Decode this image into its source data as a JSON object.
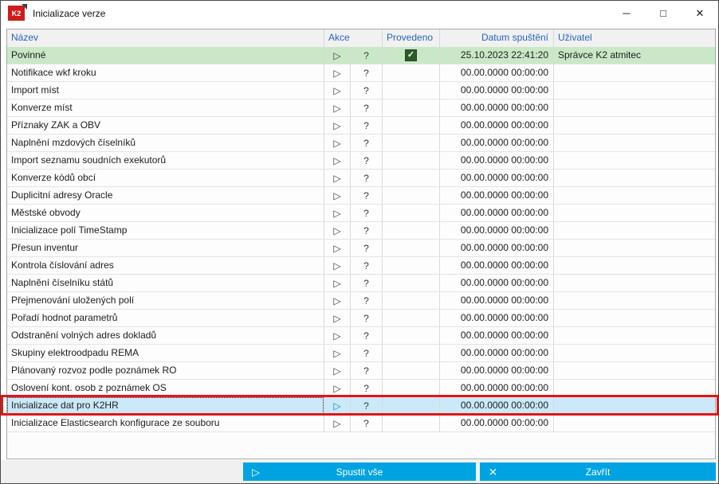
{
  "window": {
    "title": "Inicializace verze"
  },
  "icons": {
    "k2_logo": "K2",
    "minimize": "─",
    "maximize": "□",
    "close": "✕",
    "play": "▷",
    "question": "?",
    "check": "✓",
    "run_all": "▷",
    "close_btn": "✕"
  },
  "table": {
    "headers": {
      "nazev": "Název",
      "akce": "Akce",
      "provedeno": "Provedeno",
      "datum": "Datum spuštění",
      "uzivatel": "Uživatel"
    },
    "rows": [
      {
        "name": "Povinné",
        "executed": true,
        "date": "25.10.2023 22:41:20",
        "user": "Správce K2 atmitec",
        "state": "mandatory"
      },
      {
        "name": "Notifikace wkf kroku",
        "executed": false,
        "date": "00.00.0000 00:00:00",
        "user": "",
        "state": ""
      },
      {
        "name": "Import míst",
        "executed": false,
        "date": "00.00.0000 00:00:00",
        "user": "",
        "state": ""
      },
      {
        "name": "Konverze míst",
        "executed": false,
        "date": "00.00.0000 00:00:00",
        "user": "",
        "state": ""
      },
      {
        "name": "Příznaky ZAK a OBV",
        "executed": false,
        "date": "00.00.0000 00:00:00",
        "user": "",
        "state": ""
      },
      {
        "name": "Naplnění mzdových číselníků",
        "executed": false,
        "date": "00.00.0000 00:00:00",
        "user": "",
        "state": ""
      },
      {
        "name": "Import seznamu soudních exekutorů",
        "executed": false,
        "date": "00.00.0000 00:00:00",
        "user": "",
        "state": ""
      },
      {
        "name": "Konverze kódů obcí",
        "executed": false,
        "date": "00.00.0000 00:00:00",
        "user": "",
        "state": ""
      },
      {
        "name": "Duplicitní adresy Oracle",
        "executed": false,
        "date": "00.00.0000 00:00:00",
        "user": "",
        "state": ""
      },
      {
        "name": "Městské obvody",
        "executed": false,
        "date": "00.00.0000 00:00:00",
        "user": "",
        "state": ""
      },
      {
        "name": "Inicializace polí TimeStamp",
        "executed": false,
        "date": "00.00.0000 00:00:00",
        "user": "",
        "state": ""
      },
      {
        "name": "Přesun inventur",
        "executed": false,
        "date": "00.00.0000 00:00:00",
        "user": "",
        "state": ""
      },
      {
        "name": "Kontrola číslování adres",
        "executed": false,
        "date": "00.00.0000 00:00:00",
        "user": "",
        "state": ""
      },
      {
        "name": "Naplnění číselníku států",
        "executed": false,
        "date": "00.00.0000 00:00:00",
        "user": "",
        "state": ""
      },
      {
        "name": "Přejmenování uložených polí",
        "executed": false,
        "date": "00.00.0000 00:00:00",
        "user": "",
        "state": ""
      },
      {
        "name": "Pořadí hodnot parametrů",
        "executed": false,
        "date": "00.00.0000 00:00:00",
        "user": "",
        "state": ""
      },
      {
        "name": "Odstranění volných adres dokladů",
        "executed": false,
        "date": "00.00.0000 00:00:00",
        "user": "",
        "state": ""
      },
      {
        "name": "Skupiny elektroodpadu REMA",
        "executed": false,
        "date": "00.00.0000 00:00:00",
        "user": "",
        "state": ""
      },
      {
        "name": "Plánovaný rozvoz podle poznámek RO",
        "executed": false,
        "date": "00.00.0000 00:00:00",
        "user": "",
        "state": ""
      },
      {
        "name": "Oslovení kont. osob z poznámek OS",
        "executed": false,
        "date": "00.00.0000 00:00:00",
        "user": "",
        "state": ""
      },
      {
        "name": "Inicializace dat pro K2HR",
        "executed": false,
        "date": "00.00.0000 00:00:00",
        "user": "",
        "state": "selected"
      },
      {
        "name": "Inicializace Elasticsearch konfigurace ze souboru",
        "executed": false,
        "date": "00.00.0000 00:00:00",
        "user": "",
        "state": ""
      }
    ]
  },
  "footer": {
    "run_all_label": "Spustit vše",
    "close_label": "Zavřít"
  },
  "colors": {
    "accent_blue": "#00a3e2",
    "header_text_blue": "#2465c0",
    "row_mandatory_green": "#c9e8c7",
    "row_selected_blue": "#cbe9f8",
    "checkbox_green": "#2d5a27",
    "annotation_red": "#e51414",
    "k2_logo_red": "#cf1b1b"
  }
}
